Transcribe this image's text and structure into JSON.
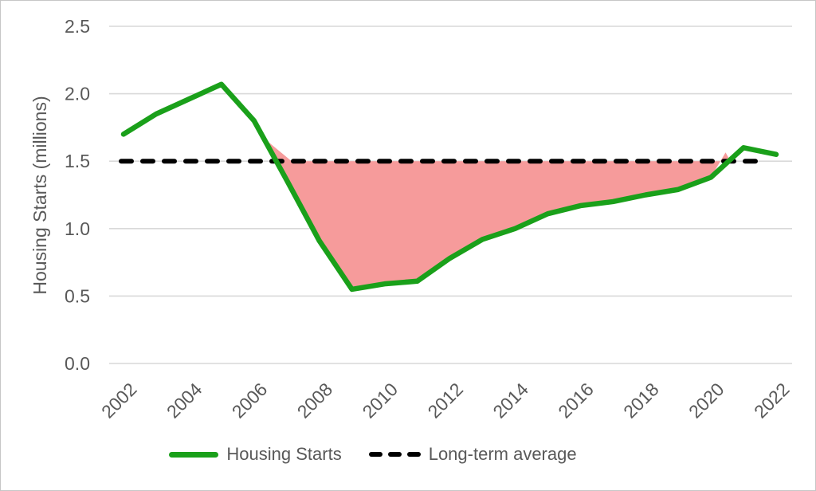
{
  "figure": {
    "background_color": "#ffffff",
    "border_color": "#c6c6c6"
  },
  "legend": {
    "housing_starts_label": "Housing Starts",
    "long_term_average_label": "Long-term average"
  },
  "chart_data": {
    "type": "line",
    "title": "",
    "xlabel": "",
    "ylabel": "Housing Starts (millions)",
    "xlim": [
      2002,
      2022
    ],
    "ylim": [
      0,
      2.5
    ],
    "grid": "horizontal",
    "gridline_color": "#d9d9d9",
    "tick_text_color": "#595959",
    "legend_position": "bottom",
    "x": [
      2002,
      2003,
      2004,
      2005,
      2006,
      2007,
      2008,
      2009,
      2010,
      2011,
      2012,
      2013,
      2014,
      2015,
      2016,
      2017,
      2018,
      2019,
      2020,
      2021,
      2022
    ],
    "xtick_labels": [
      "2002",
      "2004",
      "2006",
      "2008",
      "2010",
      "2012",
      "2014",
      "2016",
      "2018",
      "2020",
      "2022"
    ],
    "ytick_values": [
      0,
      0.5,
      1,
      1.5,
      2,
      2.5
    ],
    "ytick_labels": [
      "0.0",
      "0.5",
      "1.0",
      "1.5",
      "2.0",
      "2.5"
    ],
    "series": [
      {
        "name": "Housing Starts",
        "type": "line",
        "color": "#1aa01a",
        "values": [
          1.7,
          1.85,
          1.96,
          2.07,
          1.8,
          1.36,
          0.91,
          0.55,
          0.59,
          0.61,
          0.78,
          0.92,
          1.0,
          1.11,
          1.17,
          1.2,
          1.25,
          1.29,
          1.38,
          1.6,
          1.55
        ]
      },
      {
        "name": "Long-term average",
        "type": "dashed-line",
        "color": "#000000",
        "constant_value": 1.5
      }
    ],
    "shaded_region": {
      "name": "below-average-gap",
      "color": "#f69b9b",
      "meaning": "Area between Housing Starts and the 1.5M long-term average where starts fell below average (circa 2007-2020)",
      "polygon": [
        [
          2006.3,
          1.67
        ],
        [
          2007,
          1.36
        ],
        [
          2008,
          0.91
        ],
        [
          2009,
          0.55
        ],
        [
          2010,
          0.59
        ],
        [
          2011,
          0.61
        ],
        [
          2012,
          0.78
        ],
        [
          2013,
          0.92
        ],
        [
          2014,
          1.0
        ],
        [
          2015,
          1.11
        ],
        [
          2016,
          1.17
        ],
        [
          2017,
          1.2
        ],
        [
          2018,
          1.25
        ],
        [
          2019,
          1.29
        ],
        [
          2020,
          1.38
        ],
        [
          2020.45,
          1.565
        ],
        [
          2020.6,
          1.5
        ],
        [
          2007.15,
          1.5
        ]
      ]
    }
  }
}
